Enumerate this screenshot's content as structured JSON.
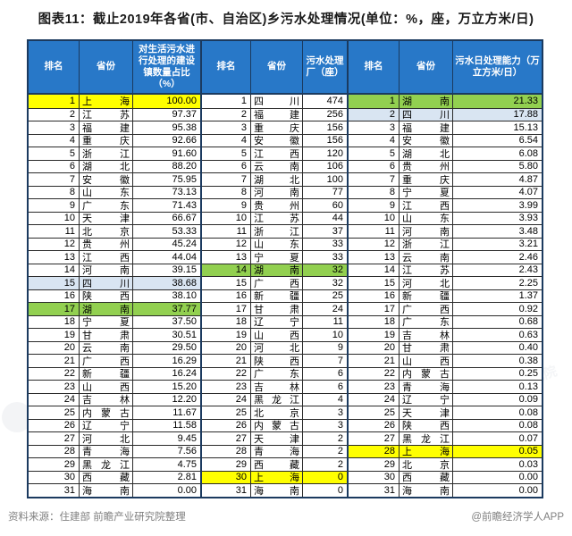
{
  "title": "图表11：截止2019年各省(市、自治区)乡污水处理情况(单位：%，座，万立方米/日)",
  "footer": {
    "source": "资料来源：住建部 前瞻产业研究院整理",
    "credit": "@前瞻经济学人APP"
  },
  "watermark": "前瞻产业研究院",
  "colors": {
    "header_bg": "#2878c8",
    "highlight_yellow": "#ffff00",
    "highlight_green": "#92d050",
    "highlight_blue": "#d9e5f2",
    "border_dark": "#1b3a5f"
  },
  "tables": [
    {
      "headers": [
        "排名",
        "省份",
        "对生活污水进行处理的建设镇数量占比（%）"
      ],
      "rows": [
        [
          "1",
          "上海",
          "100.00",
          "yellow"
        ],
        [
          "2",
          "江苏",
          "97.37",
          null
        ],
        [
          "3",
          "福建",
          "95.38",
          null
        ],
        [
          "4",
          "重庆",
          "92.66",
          null
        ],
        [
          "5",
          "浙江",
          "91.60",
          null
        ],
        [
          "6",
          "湖北",
          "88.20",
          null
        ],
        [
          "7",
          "安徽",
          "75.95",
          null
        ],
        [
          "8",
          "山东",
          "73.13",
          null
        ],
        [
          "9",
          "广东",
          "71.43",
          null
        ],
        [
          "10",
          "天津",
          "66.67",
          null
        ],
        [
          "11",
          "北京",
          "53.33",
          null
        ],
        [
          "12",
          "贵州",
          "45.24",
          null
        ],
        [
          "13",
          "江西",
          "44.04",
          null
        ],
        [
          "14",
          "河南",
          "39.15",
          null
        ],
        [
          "15",
          "四川",
          "38.68",
          "blue"
        ],
        [
          "16",
          "陕西",
          "38.10",
          null
        ],
        [
          "17",
          "湖南",
          "37.77",
          "green"
        ],
        [
          "18",
          "宁夏",
          "37.50",
          null
        ],
        [
          "19",
          "甘肃",
          "30.51",
          null
        ],
        [
          "20",
          "云南",
          "29.50",
          null
        ],
        [
          "21",
          "广西",
          "16.29",
          null
        ],
        [
          "22",
          "新疆",
          "16.24",
          null
        ],
        [
          "23",
          "山西",
          "15.20",
          null
        ],
        [
          "24",
          "吉林",
          "12.20",
          null
        ],
        [
          "25",
          "内蒙古",
          "11.67",
          null
        ],
        [
          "26",
          "辽宁",
          "11.58",
          null
        ],
        [
          "27",
          "河北",
          "9.45",
          null
        ],
        [
          "28",
          "青海",
          "7.56",
          null
        ],
        [
          "29",
          "黑龙江",
          "4.75",
          null
        ],
        [
          "30",
          "西藏",
          "2.81",
          null
        ],
        [
          "31",
          "海南",
          "0.00",
          null
        ]
      ]
    },
    {
      "headers": [
        "排名",
        "省份",
        "污水处理厂（座）"
      ],
      "rows": [
        [
          "1",
          "四川",
          "474",
          null
        ],
        [
          "2",
          "福建",
          "256",
          null
        ],
        [
          "3",
          "重庆",
          "156",
          null
        ],
        [
          "4",
          "安徽",
          "156",
          null
        ],
        [
          "5",
          "江西",
          "120",
          null
        ],
        [
          "6",
          "云南",
          "106",
          null
        ],
        [
          "7",
          "湖北",
          "100",
          null
        ],
        [
          "8",
          "河南",
          "77",
          null
        ],
        [
          "9",
          "贵州",
          "60",
          null
        ],
        [
          "10",
          "江苏",
          "44",
          null
        ],
        [
          "11",
          "浙江",
          "37",
          null
        ],
        [
          "12",
          "山东",
          "33",
          null
        ],
        [
          "13",
          "宁夏",
          "33",
          null
        ],
        [
          "14",
          "湖南",
          "32",
          "green"
        ],
        [
          "15",
          "广西",
          "32",
          null
        ],
        [
          "16",
          "新疆",
          "25",
          null
        ],
        [
          "17",
          "甘肃",
          "24",
          null
        ],
        [
          "18",
          "辽宁",
          "11",
          null
        ],
        [
          "19",
          "山西",
          "10",
          null
        ],
        [
          "20",
          "河北",
          "9",
          null
        ],
        [
          "21",
          "陕西",
          "7",
          null
        ],
        [
          "22",
          "广东",
          "6",
          null
        ],
        [
          "23",
          "吉林",
          "6",
          null
        ],
        [
          "24",
          "黑龙江",
          "4",
          null
        ],
        [
          "25",
          "北京",
          "3",
          null
        ],
        [
          "26",
          "内蒙古",
          "3",
          null
        ],
        [
          "27",
          "天津",
          "2",
          null
        ],
        [
          "28",
          "青海",
          "2",
          null
        ],
        [
          "29",
          "西藏",
          "2",
          null
        ],
        [
          "30",
          "上海",
          "0",
          "yellow"
        ],
        [
          "31",
          "海南",
          "0",
          null
        ]
      ]
    },
    {
      "headers": [
        "排名",
        "省份",
        "污水日处理能力（万立方米/日）"
      ],
      "rows": [
        [
          "1",
          "湖南",
          "21.33",
          "green"
        ],
        [
          "2",
          "四川",
          "17.88",
          "blue"
        ],
        [
          "3",
          "福建",
          "15.13",
          null
        ],
        [
          "4",
          "安徽",
          "6.54",
          null
        ],
        [
          "5",
          "湖北",
          "6.08",
          null
        ],
        [
          "6",
          "贵州",
          "5.80",
          null
        ],
        [
          "7",
          "重庆",
          "4.87",
          null
        ],
        [
          "8",
          "宁夏",
          "4.07",
          null
        ],
        [
          "9",
          "江西",
          "3.99",
          null
        ],
        [
          "10",
          "山东",
          "3.93",
          null
        ],
        [
          "11",
          "河南",
          "3.48",
          null
        ],
        [
          "12",
          "浙江",
          "3.21",
          null
        ],
        [
          "13",
          "云南",
          "2.46",
          null
        ],
        [
          "14",
          "江苏",
          "2.43",
          null
        ],
        [
          "15",
          "河北",
          "2.25",
          null
        ],
        [
          "16",
          "新疆",
          "1.37",
          null
        ],
        [
          "17",
          "广西",
          "0.92",
          null
        ],
        [
          "18",
          "广东",
          "0.68",
          null
        ],
        [
          "19",
          "吉林",
          "0.63",
          null
        ],
        [
          "20",
          "甘肃",
          "0.40",
          null
        ],
        [
          "21",
          "山西",
          "0.38",
          null
        ],
        [
          "22",
          "内蒙古",
          "0.25",
          null
        ],
        [
          "23",
          "青海",
          "0.13",
          null
        ],
        [
          "24",
          "辽宁",
          "0.09",
          null
        ],
        [
          "25",
          "天津",
          "0.08",
          null
        ],
        [
          "26",
          "陕西",
          "0.08",
          null
        ],
        [
          "27",
          "黑龙江",
          "0.07",
          null
        ],
        [
          "28",
          "上海",
          "0.05",
          "yellow"
        ],
        [
          "29",
          "北京",
          "0.03",
          null
        ],
        [
          "30",
          "西藏",
          "0.00",
          null
        ],
        [
          "31",
          "海南",
          "0.00",
          null
        ]
      ]
    }
  ]
}
